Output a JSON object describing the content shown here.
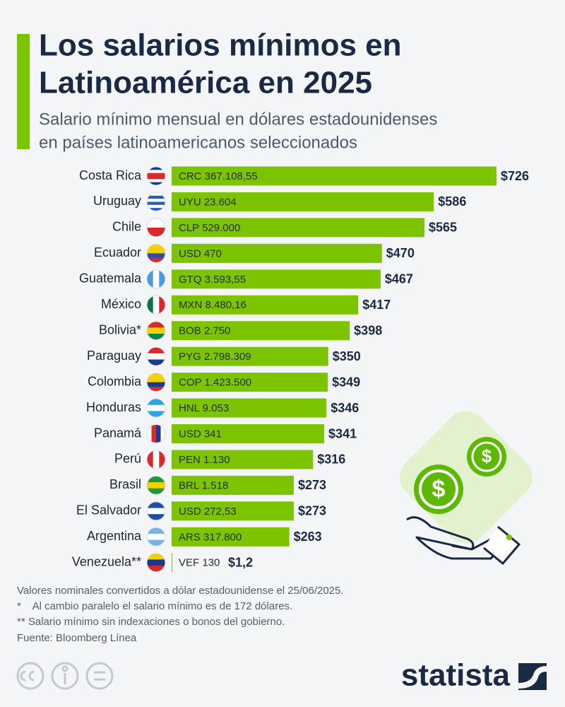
{
  "chart_data": {
    "type": "bar",
    "orientation": "horizontal",
    "title": [
      "Los salarios mínimos en",
      "Latinoamérica en 2025"
    ],
    "subtitle": [
      "Salario mínimo mensual en dólares estadounidenses",
      "en países latinoamericanos seleccionados"
    ],
    "categories": [
      "Costa Rica",
      "Uruguay",
      "Chile",
      "Ecuador",
      "Guatemala",
      "México",
      "Bolivia*",
      "Paraguay",
      "Colombia",
      "Honduras",
      "Panamá",
      "Perú",
      "Brasil",
      "El Salvador",
      "Argentina",
      "Venezuela**"
    ],
    "values": [
      726,
      586,
      565,
      470,
      467,
      417,
      398,
      350,
      349,
      346,
      341,
      316,
      273,
      273,
      263,
      1.2
    ],
    "value_labels": [
      "$726",
      "$586",
      "$565",
      "$470",
      "$467",
      "$417",
      "$398",
      "$350",
      "$349",
      "$346",
      "$341",
      "$316",
      "$273",
      "$273",
      "$263",
      "$1,2"
    ],
    "local_labels": [
      "CRC 367.108,55",
      "UYU 23.604",
      "CLP 529.000",
      "USD 470",
      "GTQ 3.593,55",
      "MXN 8.480,16",
      "BOB 2.750",
      "PYG 2.798.309",
      "COP 1.423.500",
      "HNL 9.053",
      "USD 341",
      "PEN 1.130",
      "BRL 1.518",
      "USD 272,53",
      "ARS 317.800",
      "VEF 130"
    ],
    "color": "#7cc300",
    "notes": [
      "Valores nominales convertidos a dólar estadounidense el 25/06/2025.",
      "*    Al cambio paralelo el salario mínimo es de 172 dólares.",
      "** Salario mínimo sin indexaciones o bonos del gobierno."
    ],
    "source": "Fuente: Bloomberg Línea",
    "brand": "statista"
  }
}
